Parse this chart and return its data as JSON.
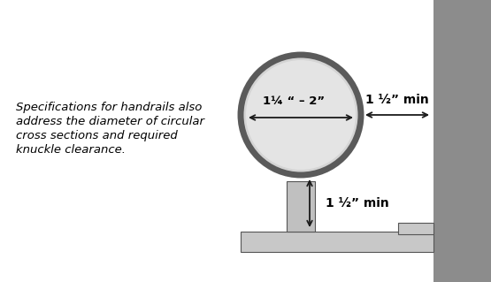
{
  "bg_color": "#ffffff",
  "wall_color": "#8c8c8c",
  "floor_color": "#c8c8c8",
  "bracket_color": "#c0c0c0",
  "circle_fill": "#d4d4d4",
  "circle_edge": "#5a5a5a",
  "circle_edge_width": 5,
  "text_color": "#000000",
  "arrow_color": "#1a1a1a",
  "note_text_lines": [
    "Specifications for handrails also",
    "address the diameter of circular",
    "cross sections and required",
    "knuckle clearance."
  ],
  "label_diameter": "1¼ “ – 2”",
  "label_horiz": "1 ½” min",
  "label_vert": "1 ½” min",
  "note_fontsize": 9.5,
  "label_fontsize": 10,
  "fig_w": 5.55,
  "fig_h": 3.19,
  "dpi": 100
}
